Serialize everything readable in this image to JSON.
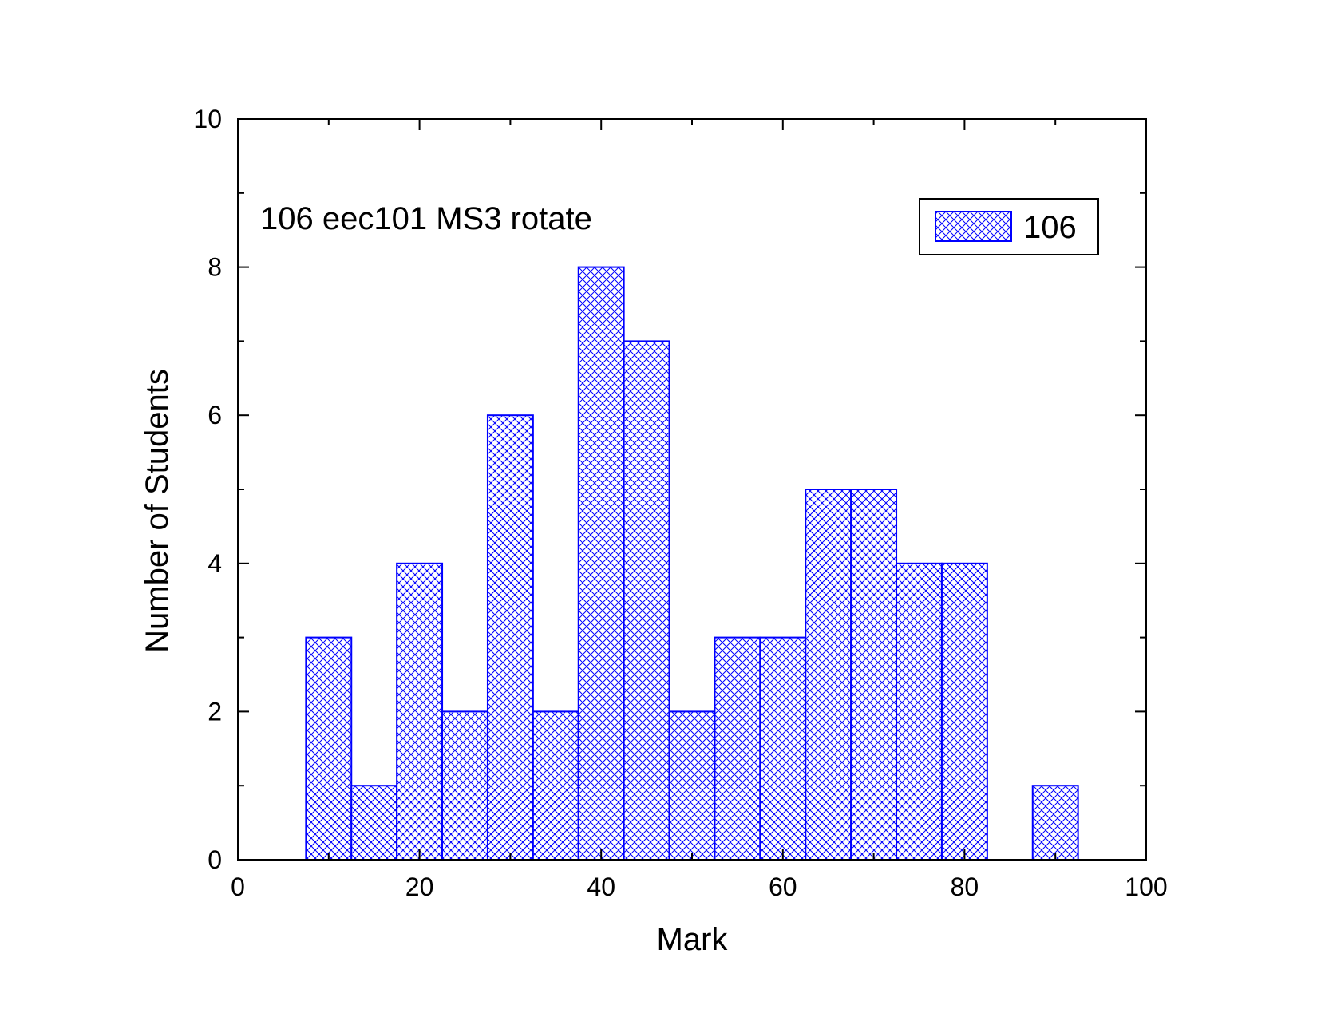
{
  "chart_data": {
    "type": "bar",
    "title": "",
    "annotation": "106 eec101 MS3 rotate",
    "xlabel": "Mark",
    "ylabel": "Number of Students",
    "xlim": [
      0,
      100
    ],
    "ylim": [
      0,
      10
    ],
    "bin_width": 5,
    "x_ticks": [
      0,
      20,
      40,
      60,
      80,
      100
    ],
    "x_tick_labels": [
      "0",
      "20",
      "40",
      "60",
      "80",
      "100"
    ],
    "y_ticks": [
      0,
      2,
      4,
      6,
      8,
      10
    ],
    "y_tick_labels": [
      "0",
      "2",
      "4",
      "6",
      "8",
      "10"
    ],
    "grid": false,
    "legend_position": "top-right",
    "series": [
      {
        "name": "106",
        "color": "#0000ff",
        "fill": "crosshatch",
        "bin_centers": [
          10,
          15,
          20,
          25,
          30,
          35,
          40,
          45,
          50,
          55,
          60,
          65,
          70,
          75,
          80,
          85,
          90
        ],
        "values": [
          3,
          1,
          4,
          2,
          6,
          2,
          8,
          7,
          2,
          3,
          3,
          5,
          5,
          4,
          4,
          0,
          1
        ]
      }
    ]
  }
}
